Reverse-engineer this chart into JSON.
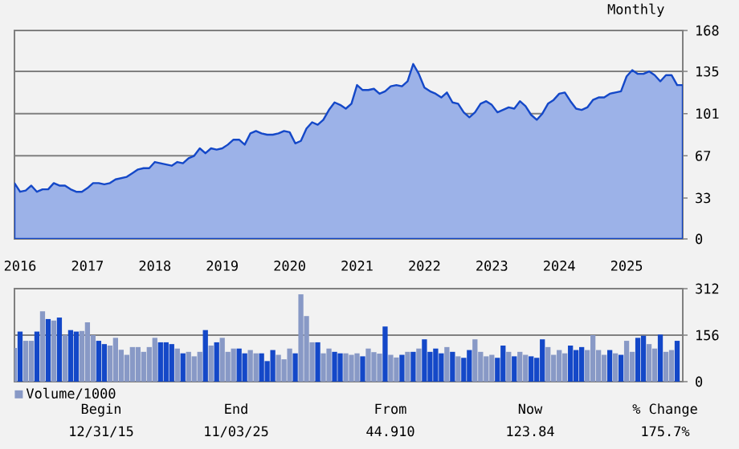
{
  "chart_data": [
    {
      "type": "area",
      "subtitle": "Monthly",
      "color": "#1448c8",
      "x": [
        "2015-12",
        "2016-01",
        "2016-02",
        "2016-03",
        "2016-04",
        "2016-05",
        "2016-06",
        "2016-07",
        "2016-08",
        "2016-09",
        "2016-10",
        "2016-11",
        "2016-12",
        "2017-01",
        "2017-02",
        "2017-03",
        "2017-04",
        "2017-05",
        "2017-06",
        "2017-07",
        "2017-08",
        "2017-09",
        "2017-10",
        "2017-11",
        "2017-12",
        "2018-01",
        "2018-02",
        "2018-03",
        "2018-04",
        "2018-05",
        "2018-06",
        "2018-07",
        "2018-08",
        "2018-09",
        "2018-10",
        "2018-11",
        "2018-12",
        "2019-01",
        "2019-02",
        "2019-03",
        "2019-04",
        "2019-05",
        "2019-06",
        "2019-07",
        "2019-08",
        "2019-09",
        "2019-10",
        "2019-11",
        "2019-12",
        "2020-01",
        "2020-02",
        "2020-03",
        "2020-04",
        "2020-05",
        "2020-06",
        "2020-07",
        "2020-08",
        "2020-09",
        "2020-10",
        "2020-11",
        "2020-12",
        "2021-01",
        "2021-02",
        "2021-03",
        "2021-04",
        "2021-05",
        "2021-06",
        "2021-07",
        "2021-08",
        "2021-09",
        "2021-10",
        "2021-11",
        "2021-12",
        "2022-01",
        "2022-02",
        "2022-03",
        "2022-04",
        "2022-05",
        "2022-06",
        "2022-07",
        "2022-08",
        "2022-09",
        "2022-10",
        "2022-11",
        "2022-12",
        "2023-01",
        "2023-02",
        "2023-03",
        "2023-04",
        "2023-05",
        "2023-06",
        "2023-07",
        "2023-08",
        "2023-09",
        "2023-10",
        "2023-11",
        "2023-12",
        "2024-01",
        "2024-02",
        "2024-03",
        "2024-04",
        "2024-05",
        "2024-06",
        "2024-07",
        "2024-08",
        "2024-09",
        "2024-10",
        "2024-11",
        "2024-12",
        "2025-01",
        "2025-02",
        "2025-03",
        "2025-04",
        "2025-05",
        "2025-06",
        "2025-07",
        "2025-08",
        "2025-09",
        "2025-10",
        "2025-11"
      ],
      "values": [
        45,
        38,
        39,
        43,
        38,
        40,
        40,
        45,
        43,
        43,
        40,
        38,
        38,
        41,
        45,
        45,
        44,
        45,
        48,
        49,
        50,
        53,
        56,
        57,
        57,
        62,
        61,
        60,
        59,
        62,
        61,
        65,
        67,
        73,
        69,
        73,
        72,
        73,
        76,
        80,
        80,
        76,
        85,
        87,
        85,
        84,
        84,
        85,
        87,
        86,
        77,
        79,
        89,
        94,
        92,
        96,
        104,
        110,
        108,
        105,
        109,
        124,
        120,
        120,
        121,
        117,
        119,
        123,
        124,
        123,
        127,
        141,
        133,
        122,
        119,
        117,
        114,
        118,
        110,
        109,
        102,
        98,
        102,
        109,
        111,
        108,
        102,
        104,
        106,
        105,
        111,
        107,
        100,
        96,
        101,
        109,
        112,
        117,
        118,
        111,
        105,
        104,
        106,
        112,
        114,
        114,
        117,
        118,
        119,
        131,
        136,
        133,
        133,
        135,
        132,
        127,
        132,
        132,
        124,
        124
      ],
      "xlim": [
        "2015-12",
        "2025-11"
      ],
      "ylim": [
        0,
        168
      ],
      "xticks": [
        {
          "value": "2016-01",
          "label": "2016"
        },
        {
          "value": "2017-01",
          "label": "2017"
        },
        {
          "value": "2018-01",
          "label": "2018"
        },
        {
          "value": "2019-01",
          "label": "2019"
        },
        {
          "value": "2020-01",
          "label": "2020"
        },
        {
          "value": "2021-01",
          "label": "2021"
        },
        {
          "value": "2022-01",
          "label": "2022"
        },
        {
          "value": "2023-01",
          "label": "2023"
        },
        {
          "value": "2024-01",
          "label": "2024"
        },
        {
          "value": "2025-01",
          "label": "2025"
        }
      ],
      "yticks": [
        0,
        33,
        67,
        101,
        135,
        168
      ],
      "grid": "y"
    },
    {
      "type": "bar",
      "tick_labels": "y",
      "legend": "bottom left",
      "x": [
        "2015-12",
        "2016-01",
        "2016-02",
        "2016-03",
        "2016-04",
        "2016-05",
        "2016-06",
        "2016-07",
        "2016-08",
        "2016-09",
        "2016-10",
        "2016-11",
        "2016-12",
        "2017-01",
        "2017-02",
        "2017-03",
        "2017-04",
        "2017-05",
        "2017-06",
        "2017-07",
        "2017-08",
        "2017-09",
        "2017-10",
        "2017-11",
        "2017-12",
        "2018-01",
        "2018-02",
        "2018-03",
        "2018-04",
        "2018-05",
        "2018-06",
        "2018-07",
        "2018-08",
        "2018-09",
        "2018-10",
        "2018-11",
        "2018-12",
        "2019-01",
        "2019-02",
        "2019-03",
        "2019-04",
        "2019-05",
        "2019-06",
        "2019-07",
        "2019-08",
        "2019-09",
        "2019-10",
        "2019-11",
        "2019-12",
        "2020-01",
        "2020-02",
        "2020-03",
        "2020-04",
        "2020-05",
        "2020-06",
        "2020-07",
        "2020-08",
        "2020-09",
        "2020-10",
        "2020-11",
        "2020-12",
        "2021-01",
        "2021-02",
        "2021-03",
        "2021-04",
        "2021-05",
        "2021-06",
        "2021-07",
        "2021-08",
        "2021-09",
        "2021-10",
        "2021-11",
        "2021-12",
        "2022-01",
        "2022-02",
        "2022-03",
        "2022-04",
        "2022-05",
        "2022-06",
        "2022-07",
        "2022-08",
        "2022-09",
        "2022-10",
        "2022-11",
        "2022-12",
        "2023-01",
        "2023-02",
        "2023-03",
        "2023-04",
        "2023-05",
        "2023-06",
        "2023-07",
        "2023-08",
        "2023-09",
        "2023-10",
        "2023-11",
        "2023-12",
        "2024-01",
        "2024-02",
        "2024-03",
        "2024-04",
        "2024-05",
        "2024-06",
        "2024-07",
        "2024-08",
        "2024-09",
        "2024-10",
        "2024-11",
        "2024-12",
        "2025-01",
        "2025-02",
        "2025-03",
        "2025-04",
        "2025-05",
        "2025-06",
        "2025-07",
        "2025-08",
        "2025-09",
        "2025-10"
      ],
      "series": [
        {
          "name": "Volume/1000",
          "color": "#8899c6",
          "values": [
            113,
            168,
            137,
            137,
            168,
            236,
            210,
            205,
            215,
            156,
            173,
            168,
            170,
            199,
            156,
            137,
            126,
            121,
            147,
            107,
            90,
            116,
            116,
            100,
            116,
            147,
            132,
            132,
            126,
            111,
            95,
            100,
            85,
            100,
            173,
            121,
            132,
            147,
            100,
            111,
            111,
            95,
            106,
            95,
            95,
            69,
            106,
            90,
            75,
            111,
            95,
            293,
            220,
            132,
            132,
            95,
            111,
            100,
            95,
            95,
            90,
            95,
            85,
            111,
            99,
            94,
            185,
            90,
            81,
            90,
            100,
            100,
            111,
            142,
            100,
            111,
            95,
            116,
            100,
            85,
            80,
            106,
            142,
            100,
            85,
            90,
            80,
            121,
            100,
            85,
            100,
            90,
            85,
            80,
            142,
            116,
            90,
            106,
            95,
            121,
            106,
            116,
            106,
            156,
            106,
            90,
            106,
            95,
            90,
            137,
            100,
            147,
            154,
            126,
            111,
            158,
            100,
            106,
            137
          ],
          "colors": [
            "#8899c6",
            "#1448c8",
            "#8899c6",
            "#8899c6",
            "#1448c8",
            "#8899c6",
            "#1448c8",
            "#8899c6",
            "#1448c8",
            "#8899c6",
            "#1448c8",
            "#1448c8",
            "#8899c6",
            "#8899c6",
            "#8899c6",
            "#1448c8",
            "#1448c8",
            "#8899c6",
            "#8899c6",
            "#8899c6",
            "#8899c6",
            "#8899c6",
            "#8899c6",
            "#8899c6",
            "#8899c6",
            "#8899c6",
            "#1448c8",
            "#1448c8",
            "#1448c8",
            "#8899c6",
            "#1448c8",
            "#8899c6",
            "#8899c6",
            "#8899c6",
            "#1448c8",
            "#8899c6",
            "#1448c8",
            "#8899c6",
            "#8899c6",
            "#8899c6",
            "#1448c8",
            "#1448c8",
            "#8899c6",
            "#8899c6",
            "#1448c8",
            "#1448c8",
            "#1448c8",
            "#8899c6",
            "#8899c6",
            "#8899c6",
            "#1448c8",
            "#8899c6",
            "#8899c6",
            "#8899c6",
            "#1448c8",
            "#8899c6",
            "#8899c6",
            "#1448c8",
            "#1448c8",
            "#8899c6",
            "#8899c6",
            "#8899c6",
            "#1448c8",
            "#8899c6",
            "#8899c6",
            "#8899c6",
            "#1448c8",
            "#8899c6",
            "#8899c6",
            "#1448c8",
            "#8899c6",
            "#1448c8",
            "#8899c6",
            "#1448c8",
            "#1448c8",
            "#1448c8",
            "#1448c8",
            "#8899c6",
            "#1448c8",
            "#8899c6",
            "#1448c8",
            "#1448c8",
            "#8899c6",
            "#8899c6",
            "#8899c6",
            "#8899c6",
            "#1448c8",
            "#1448c8",
            "#8899c6",
            "#1448c8",
            "#8899c6",
            "#8899c6",
            "#1448c8",
            "#1448c8",
            "#1448c8",
            "#8899c6",
            "#8899c6",
            "#8899c6",
            "#8899c6",
            "#1448c8",
            "#1448c8",
            "#1448c8",
            "#8899c6",
            "#8899c6",
            "#8899c6",
            "#8899c6",
            "#1448c8",
            "#8899c6",
            "#1448c8",
            "#8899c6",
            "#8899c6",
            "#1448c8",
            "#1448c8",
            "#8899c6",
            "#8899c6",
            "#1448c8",
            "#8899c6",
            "#8899c6",
            "#1448c8"
          ]
        }
      ],
      "xlim": [
        "2015-12",
        "2025-11"
      ],
      "ylim": [
        0,
        312
      ],
      "yticks": [
        0,
        156,
        312
      ],
      "grid": "y",
      "annotations": [
        "Begin",
        "End",
        "From",
        "Now",
        "% Change",
        "12/31/15",
        "11/03/25",
        "44.910",
        "123.84",
        "175.7%"
      ]
    }
  ]
}
